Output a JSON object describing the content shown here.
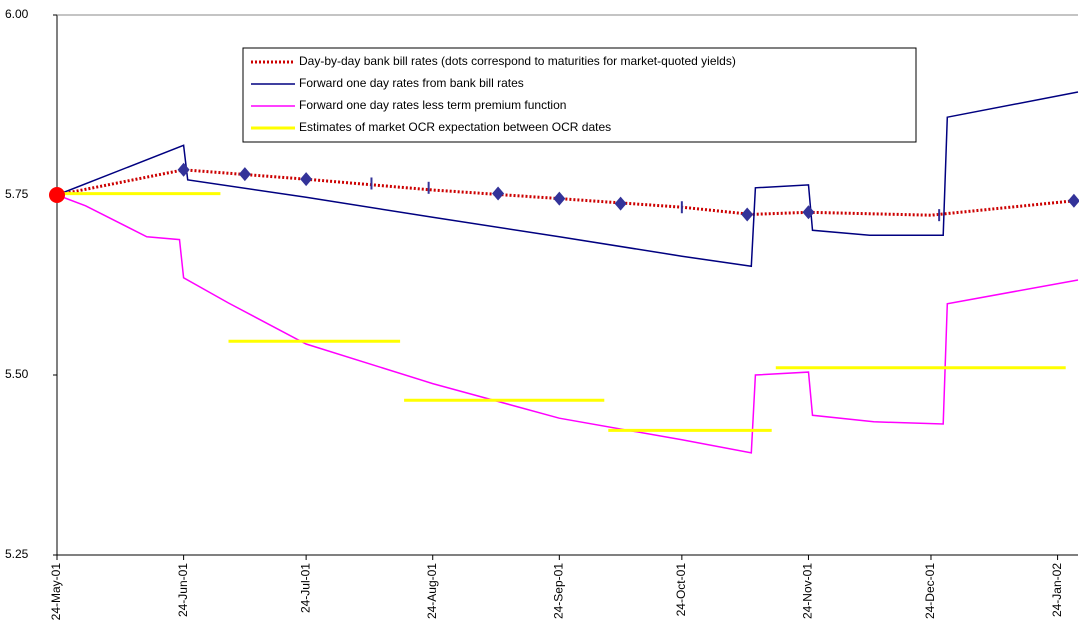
{
  "chart_data": {
    "type": "line",
    "xlim": [
      "2001-05-24",
      "2002-01-29"
    ],
    "xticks": [
      {
        "value": "2001-05-24",
        "label": "24-May-01"
      },
      {
        "value": "2001-06-24",
        "label": "24-Jun-01"
      },
      {
        "value": "2001-07-24",
        "label": "24-Jul-01"
      },
      {
        "value": "2001-08-24",
        "label": "24-Aug-01"
      },
      {
        "value": "2001-09-24",
        "label": "24-Sep-01"
      },
      {
        "value": "2001-10-24",
        "label": "24-Oct-01"
      },
      {
        "value": "2001-11-24",
        "label": "24-Nov-01"
      },
      {
        "value": "2001-12-24",
        "label": "24-Dec-01"
      },
      {
        "value": "2002-01-24",
        "label": "24-Jan-02"
      }
    ],
    "ylim": [
      5.25,
      6.0
    ],
    "yticks": [
      {
        "value": 5.25,
        "label": "5.25"
      },
      {
        "value": 5.5,
        "label": "5.50"
      },
      {
        "value": 5.75,
        "label": "5.75"
      },
      {
        "value": 6.0,
        "label": "6.00"
      }
    ],
    "grid": false,
    "series": [
      {
        "name": "Day-by-day bank bill rates (dots correspond to maturities for market-quoted yields)",
        "color": "#cc0000",
        "style": "dotted",
        "x": [
          "2001-05-24",
          "2001-06-24",
          "2001-07-24",
          "2001-08-24",
          "2001-09-24",
          "2001-10-24",
          "2001-11-10",
          "2001-11-24",
          "2001-12-24",
          "2002-01-28"
        ],
        "values": [
          5.75,
          5.785,
          5.772,
          5.757,
          5.745,
          5.733,
          5.723,
          5.726,
          5.722,
          5.742
        ]
      },
      {
        "name": "Forward one day rates from bank bill rates",
        "color": "#000080",
        "style": "solid",
        "x": [
          "2001-05-24",
          "2001-06-24",
          "2001-06-25",
          "2001-07-24",
          "2001-08-24",
          "2001-09-24",
          "2001-10-24",
          "2001-11-10",
          "2001-11-11",
          "2001-11-24",
          "2001-11-25",
          "2001-12-09",
          "2001-12-27",
          "2001-12-28",
          "2002-01-29"
        ],
        "values": [
          5.75,
          5.819,
          5.771,
          5.747,
          5.719,
          5.692,
          5.665,
          5.651,
          5.76,
          5.764,
          5.701,
          5.694,
          5.694,
          5.858,
          5.893
        ]
      },
      {
        "name": "Forward one day rates less term premium function",
        "color": "#ff00ff",
        "style": "solid",
        "x": [
          "2001-05-24",
          "2001-05-31",
          "2001-06-15",
          "2001-06-23",
          "2001-06-24",
          "2001-07-05",
          "2001-07-24",
          "2001-08-24",
          "2001-09-24",
          "2001-10-24",
          "2001-11-10",
          "2001-11-11",
          "2001-11-24",
          "2001-11-25",
          "2001-12-10",
          "2001-12-27",
          "2001-12-28",
          "2002-01-29"
        ],
        "values": [
          5.75,
          5.735,
          5.692,
          5.688,
          5.635,
          5.6,
          5.543,
          5.488,
          5.44,
          5.41,
          5.392,
          5.5,
          5.504,
          5.444,
          5.435,
          5.432,
          5.599,
          5.632
        ]
      },
      {
        "name": "Estimates of market OCR expectation between OCR dates",
        "color": "#ffff00",
        "style": "thick",
        "x": [
          "2001-05-24",
          "2001-07-03",
          "2001-07-04",
          "2001-07-05",
          "2001-08-16",
          "2001-08-16",
          "2001-08-17",
          "2001-10-05",
          "2001-10-05",
          "2001-10-06",
          "2001-11-15",
          "2001-11-15",
          "2001-11-16",
          "2002-01-26"
        ],
        "values": [
          5.752,
          5.752,
          null,
          5.547,
          5.547,
          null,
          5.465,
          5.465,
          null,
          5.423,
          5.423,
          null,
          5.51,
          5.51
        ]
      },
      {
        "color": "#333399",
        "marker": "diamond",
        "x": [
          "2001-06-24",
          "2001-07-09",
          "2001-07-24",
          "2001-09-09",
          "2001-09-24",
          "2001-10-09",
          "2001-11-09",
          "2001-11-24",
          "2002-01-28"
        ],
        "values": [
          5.785,
          5.779,
          5.772,
          5.752,
          5.745,
          5.738,
          5.723,
          5.726,
          5.742
        ]
      },
      {
        "color": "#333399",
        "marker": "tick",
        "x": [
          "2001-08-09",
          "2001-08-23",
          "2001-10-24",
          "2001-12-26"
        ],
        "values": [
          5.766,
          5.76,
          5.733,
          5.722
        ]
      },
      {
        "color": "#ff0000",
        "marker": "circle",
        "x": [
          "2001-05-24"
        ],
        "values": [
          5.75
        ]
      }
    ]
  }
}
